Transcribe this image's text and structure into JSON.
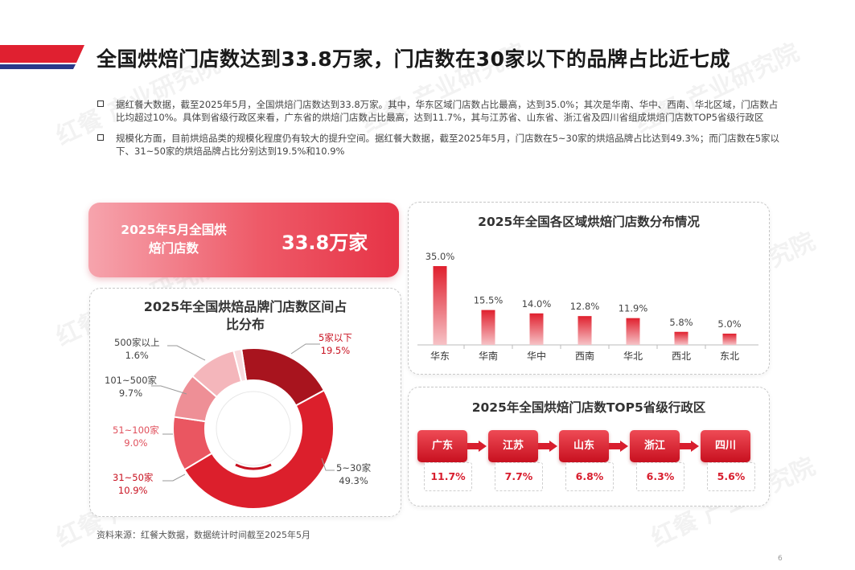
{
  "title": "全国烘焙门店数达到33.8万家，门店数在30家以下的品牌占比近七成",
  "bullets": [
    "据红餐大数据，截至2025年5月，全国烘焙门店数达到33.8万家。其中，华东区域门店数占比最高，达到35.0%；其次是华南、华中、西南、华北区域，门店数占比均超过10%。具体到省级行政区来看，广东省的烘焙门店数占比最高，达到11.7%，其与江苏省、山东省、浙江省及四川省组成烘焙门店数TOP5省级行政区",
    "规模化方面，目前烘焙品类的规模化程度仍有较大的提升空间。据红餐大数据，截至2025年5月，门店数在5~30家的烘焙品牌占比达到49.3%；而门店数在5家以下、31~50家的烘焙品牌占比分别达到19.5%和10.9%"
  ],
  "stat": {
    "label": "2025年5月全国烘焙门店数",
    "value": "33.8万家"
  },
  "donut": {
    "title": "2025年全国烘焙品牌门店数区间占比分布",
    "slices": [
      {
        "name": "5家以下",
        "value": "19.5%",
        "color": "#a8141e"
      },
      {
        "name": "5~30家",
        "value": "49.3%",
        "color": "#dc1f2c"
      },
      {
        "name": "31~50家",
        "value": "10.9%",
        "color": "#ea5661"
      },
      {
        "name": "51~100家",
        "value": "9.0%",
        "color": "#ee8f96"
      },
      {
        "name": "101~500家",
        "value": "9.7%",
        "color": "#f4b6bb"
      },
      {
        "name": "500家以上",
        "value": "1.6%",
        "color": "#f9dadd"
      }
    ]
  },
  "chart_data": {
    "type": "bar",
    "title": "2025年全国各区域烘焙门店数分布情况",
    "categories": [
      "华东",
      "华南",
      "华中",
      "西南",
      "华北",
      "西北",
      "东北"
    ],
    "values": [
      35.0,
      15.5,
      14.0,
      12.8,
      11.9,
      5.8,
      5.0
    ],
    "value_labels": [
      "35.0%",
      "15.5%",
      "14.0%",
      "12.8%",
      "11.9%",
      "5.8%",
      "5.0%"
    ],
    "ylim": [
      0,
      35
    ],
    "color": "#e0202e"
  },
  "top5": {
    "title": "2025年全国烘焙门店数TOP5省级行政区",
    "items": [
      {
        "name": "广东",
        "value": "11.7%"
      },
      {
        "name": "江苏",
        "value": "7.7%"
      },
      {
        "name": "山东",
        "value": "6.8%"
      },
      {
        "name": "浙江",
        "value": "6.3%"
      },
      {
        "name": "四川",
        "value": "5.6%"
      }
    ]
  },
  "source": "资料来源：红餐大数据，数据统计时间截至2025年5月",
  "page_number": "6",
  "watermark": {
    "logo": "红餐",
    "text": "产业研究院"
  }
}
